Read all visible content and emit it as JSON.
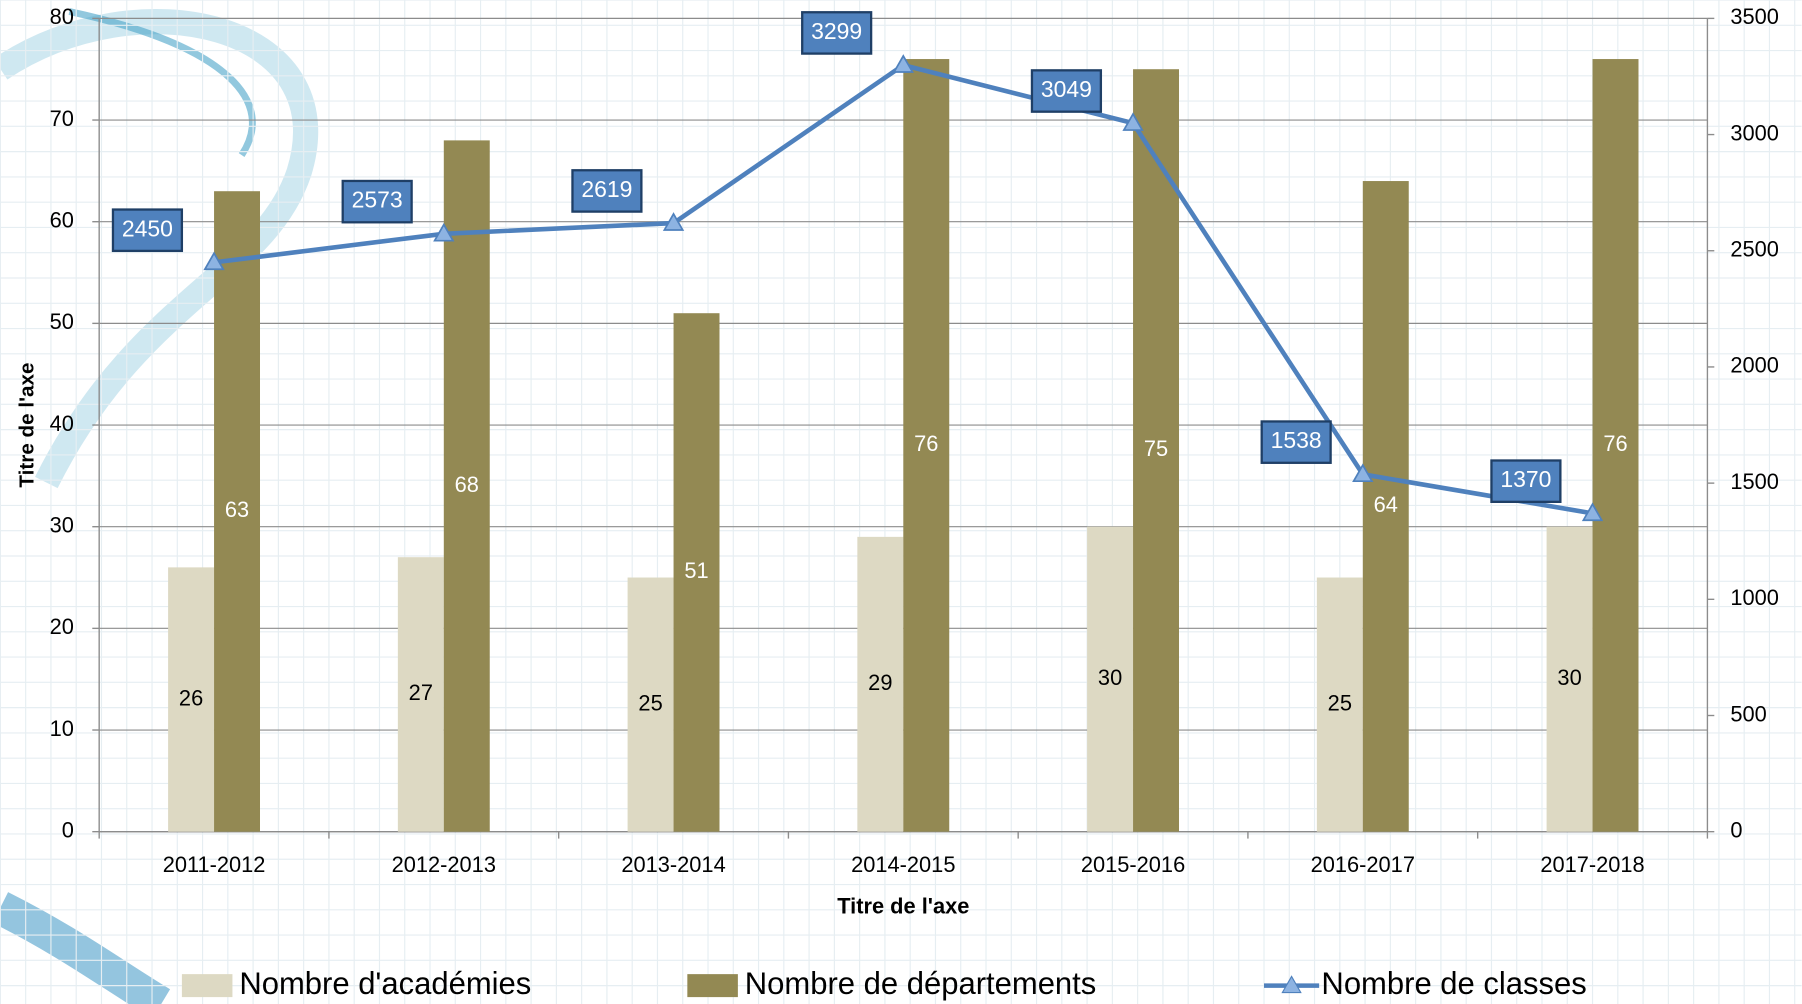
{
  "chart_data": {
    "type": "bar",
    "categories": [
      "2011-2012",
      "2012-2013",
      "2013-2014",
      "2014-2015",
      "2015-2016",
      "2016-2017",
      "2017-2018"
    ],
    "series": [
      {
        "name": "Nombre d'académies",
        "color": "#ddd9c3",
        "values": [
          26,
          27,
          25,
          29,
          30,
          25,
          30
        ]
      },
      {
        "name": "Nombre de départements",
        "color": "#938953",
        "values": [
          63,
          68,
          51,
          76,
          75,
          64,
          76
        ]
      },
      {
        "name": "Nombre de classes",
        "type": "line",
        "axis": "y2",
        "color": "#4f81bd",
        "values": [
          2450,
          2573,
          2619,
          3299,
          3049,
          1538,
          1370
        ]
      }
    ],
    "ylim": [
      0,
      80
    ],
    "yticks": [
      0,
      10,
      20,
      30,
      40,
      50,
      60,
      70,
      80
    ],
    "y2lim": [
      0,
      3500
    ],
    "y2ticks": [
      0,
      500,
      1000,
      1500,
      2000,
      2500,
      3000,
      3500
    ],
    "x_label": "Titre de l'axe",
    "y_label": "Titre de l'axe",
    "grid": true,
    "legend": "bottom"
  }
}
